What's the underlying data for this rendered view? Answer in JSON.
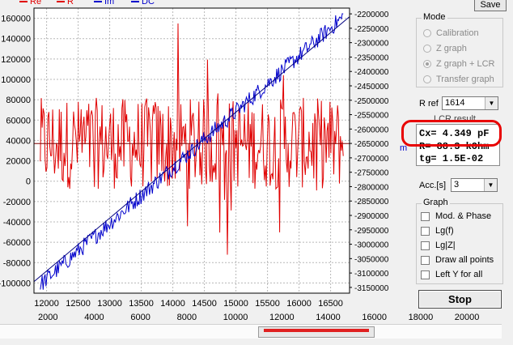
{
  "legend": [
    {
      "label": "Re",
      "color": "#e00000"
    },
    {
      "label": "R",
      "color": "#e00000"
    },
    {
      "label": "Im",
      "color": "#0000cc"
    },
    {
      "label": "DC",
      "color": "#0000cc"
    }
  ],
  "save_label": "Save",
  "mode": {
    "title": "Mode",
    "options": [
      {
        "label": "Calibration",
        "selected": false
      },
      {
        "label": "Z graph",
        "selected": false
      },
      {
        "label": "Z graph + LCR",
        "selected": true
      },
      {
        "label": "Transfer graph",
        "selected": false
      }
    ]
  },
  "rref": {
    "label": "R ref",
    "value": "1614"
  },
  "lcr": {
    "title": "LCR result",
    "lines": [
      "Cx= 4.349 pF",
      "R= 88.3 kOhm",
      "tg= 1.5E-02"
    ]
  },
  "acc": {
    "label": "Acc.[s]",
    "value": "3"
  },
  "graph": {
    "title": "Graph",
    "options": [
      "Mod. & Phase",
      "Lg(f)",
      "Lg|Z|",
      "Draw all points",
      "Left Y for all"
    ]
  },
  "stop_label": "Stop",
  "ruler_ticks": [
    "2000",
    "4000",
    "6000",
    "8000",
    "10000",
    "12000",
    "14000",
    "16000",
    "18000",
    "20000"
  ],
  "right_axis_unit": "m",
  "chart_data": {
    "type": "line",
    "xlim": [
      11800,
      16800
    ],
    "x_ticks": [
      "12000",
      "12500",
      "13000",
      "13500",
      "14000",
      "14500",
      "15000",
      "15500",
      "16000",
      "16500"
    ],
    "y_left_lim": [
      -110000,
      170000
    ],
    "y_left_ticks": [
      "160000",
      "140000",
      "120000",
      "100000",
      "80000",
      "60000",
      "40000",
      "20000",
      "0",
      "-20000",
      "-40000",
      "-60000",
      "-80000",
      "-100000"
    ],
    "y_right_lim": [
      -3170000,
      -2180000
    ],
    "y_right_ticks": [
      "-2200000",
      "-2250000",
      "-2300000",
      "-2350000",
      "-2400000",
      "-2450000",
      "-2500000",
      "-2550000",
      "-2600000",
      "-2650000",
      "-2700000",
      "-2750000",
      "-2800000",
      "-2850000",
      "-2900000",
      "-2950000",
      "-3000000",
      "-3050000",
      "-3100000",
      "-3150000"
    ],
    "grid": true,
    "series": [
      {
        "name": "Re",
        "axis": "left",
        "color": "#e00000",
        "mean": 37000,
        "amplitude": 45000,
        "x_start": 11900,
        "x_end": 16700,
        "points": 320
      },
      {
        "name": "Im",
        "axis": "right",
        "color": "#0000cc",
        "start": -3140000,
        "end": -2210000,
        "noise": 30000,
        "x_start": 11900,
        "x_end": 16700,
        "points": 320
      },
      {
        "name": "R",
        "axis": "left",
        "color": "#800000",
        "value": 37000
      },
      {
        "name": "DC",
        "axis": "right",
        "color": "#000080",
        "start": -3130000,
        "end": -2210000
      }
    ]
  }
}
